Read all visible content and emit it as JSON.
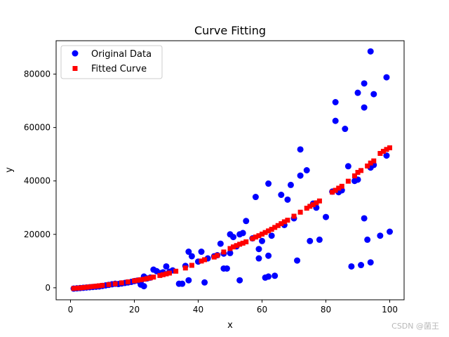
{
  "chart_data": {
    "type": "scatter",
    "title": "Curve Fitting",
    "xlabel": "x",
    "ylabel": "y",
    "xlim": [
      -4.5,
      104.5
    ],
    "ylim": [
      -4500,
      92500
    ],
    "xticks": [
      0,
      20,
      40,
      60,
      80,
      100
    ],
    "xtick_labels": [
      "0",
      "20",
      "40",
      "60",
      "80",
      "100"
    ],
    "yticks": [
      0,
      20000,
      40000,
      60000,
      80000
    ],
    "ytick_labels": [
      "0",
      "20000",
      "40000",
      "60000",
      "80000"
    ],
    "grid": false,
    "legend_position": "upper-left",
    "series": [
      {
        "name": "Original Data",
        "marker": "circle",
        "color": "#0000ff",
        "points": [
          [
            1,
            -300
          ],
          [
            2,
            -200
          ],
          [
            3,
            -100
          ],
          [
            4,
            0
          ],
          [
            5,
            100
          ],
          [
            6,
            200
          ],
          [
            7,
            300
          ],
          [
            8,
            400
          ],
          [
            9,
            500
          ],
          [
            10,
            700
          ],
          [
            11,
            900
          ],
          [
            12,
            1100
          ],
          [
            13,
            1300
          ],
          [
            14,
            1500
          ],
          [
            15,
            1400
          ],
          [
            16,
            1600
          ],
          [
            17,
            1800
          ],
          [
            18,
            2000
          ],
          [
            19,
            2200
          ],
          [
            20,
            2500
          ],
          [
            21,
            2700
          ],
          [
            22,
            1200
          ],
          [
            22,
            2300
          ],
          [
            23,
            4200
          ],
          [
            23,
            600
          ],
          [
            24,
            3500
          ],
          [
            25,
            3800
          ],
          [
            26,
            6800
          ],
          [
            27,
            6200
          ],
          [
            28,
            5500
          ],
          [
            29,
            5800
          ],
          [
            30,
            8000
          ],
          [
            31,
            6000
          ],
          [
            32,
            6500
          ],
          [
            34,
            1500
          ],
          [
            35,
            1500
          ],
          [
            36,
            8200
          ],
          [
            37,
            2800
          ],
          [
            37,
            13500
          ],
          [
            38,
            11800
          ],
          [
            40,
            9800
          ],
          [
            41,
            13500
          ],
          [
            42,
            2000
          ],
          [
            43,
            11000
          ],
          [
            45,
            11800
          ],
          [
            46,
            12200
          ],
          [
            47,
            16500
          ],
          [
            48,
            7200
          ],
          [
            48,
            12800
          ],
          [
            49,
            7200
          ],
          [
            50,
            20000
          ],
          [
            50,
            13000
          ],
          [
            51,
            19000
          ],
          [
            52,
            15500
          ],
          [
            53,
            2800
          ],
          [
            53,
            20000
          ],
          [
            54,
            20500
          ],
          [
            55,
            25000
          ],
          [
            57,
            18500
          ],
          [
            58,
            34000
          ],
          [
            59,
            11000
          ],
          [
            59,
            14500
          ],
          [
            60,
            17500
          ],
          [
            61,
            3800
          ],
          [
            62,
            4200
          ],
          [
            62,
            12000
          ],
          [
            62,
            39000
          ],
          [
            63,
            19500
          ],
          [
            64,
            4500
          ],
          [
            66,
            34800
          ],
          [
            67,
            23500
          ],
          [
            68,
            33000
          ],
          [
            69,
            38500
          ],
          [
            70,
            26000
          ],
          [
            71,
            10200
          ],
          [
            72,
            42000
          ],
          [
            72,
            51800
          ],
          [
            74,
            44000
          ],
          [
            75,
            17500
          ],
          [
            76,
            31500
          ],
          [
            77,
            30000
          ],
          [
            78,
            18000
          ],
          [
            80,
            26500
          ],
          [
            82,
            36000
          ],
          [
            83,
            62500
          ],
          [
            83,
            69500
          ],
          [
            84,
            35800
          ],
          [
            85,
            36500
          ],
          [
            86,
            59500
          ],
          [
            87,
            45500
          ],
          [
            88,
            8000
          ],
          [
            89,
            40000
          ],
          [
            90,
            40500
          ],
          [
            90,
            73000
          ],
          [
            91,
            8500
          ],
          [
            92,
            26000
          ],
          [
            92,
            67500
          ],
          [
            92,
            76500
          ],
          [
            93,
            18000
          ],
          [
            94,
            88500
          ],
          [
            94,
            9500
          ],
          [
            94,
            45000
          ],
          [
            95,
            46000
          ],
          [
            95,
            72500
          ],
          [
            97,
            19500
          ],
          [
            99,
            78800
          ],
          [
            99,
            49500
          ],
          [
            100,
            21000
          ]
        ]
      },
      {
        "name": "Fitted Curve",
        "marker": "square",
        "color": "#ff0000",
        "points": [
          [
            1,
            -250
          ],
          [
            2,
            -150
          ],
          [
            3,
            -50
          ],
          [
            4,
            80
          ],
          [
            5,
            200
          ],
          [
            6,
            330
          ],
          [
            7,
            480
          ],
          [
            8,
            600
          ],
          [
            9,
            750
          ],
          [
            10,
            900
          ],
          [
            12,
            1200
          ],
          [
            14,
            1500
          ],
          [
            16,
            1850
          ],
          [
            18,
            2200
          ],
          [
            20,
            2600
          ],
          [
            21,
            2800
          ],
          [
            22,
            3000
          ],
          [
            23,
            3200
          ],
          [
            24,
            3450
          ],
          [
            25,
            3700
          ],
          [
            26,
            4000
          ],
          [
            28,
            4600
          ],
          [
            29,
            4900
          ],
          [
            30,
            5200
          ],
          [
            31,
            5500
          ],
          [
            33,
            6200
          ],
          [
            36,
            7400
          ],
          [
            38,
            8400
          ],
          [
            41,
            10000
          ],
          [
            42,
            10500
          ],
          [
            45,
            11500
          ],
          [
            46,
            12100
          ],
          [
            48,
            13400
          ],
          [
            50,
            14700
          ],
          [
            51,
            15300
          ],
          [
            52,
            15800
          ],
          [
            53,
            16300
          ],
          [
            54,
            16700
          ],
          [
            55,
            17200
          ],
          [
            57,
            18400
          ],
          [
            58,
            19000
          ],
          [
            59,
            19500
          ],
          [
            60,
            20100
          ],
          [
            61,
            20700
          ],
          [
            62,
            21300
          ],
          [
            63,
            21900
          ],
          [
            64,
            22600
          ],
          [
            65,
            23300
          ],
          [
            66,
            24000
          ],
          [
            67,
            24700
          ],
          [
            68,
            25300
          ],
          [
            70,
            26800
          ],
          [
            72,
            28300
          ],
          [
            74,
            29800
          ],
          [
            75,
            30500
          ],
          [
            76,
            31100
          ],
          [
            77,
            31800
          ],
          [
            78,
            32500
          ],
          [
            82,
            35800
          ],
          [
            83,
            36500
          ],
          [
            84,
            37300
          ],
          [
            85,
            38000
          ],
          [
            87,
            39900
          ],
          [
            89,
            41900
          ],
          [
            90,
            43200
          ],
          [
            91,
            43900
          ],
          [
            93,
            45600
          ],
          [
            94,
            46700
          ],
          [
            95,
            47500
          ],
          [
            97,
            50300
          ],
          [
            98,
            51100
          ],
          [
            99,
            51800
          ],
          [
            100,
            52400
          ]
        ]
      }
    ]
  },
  "watermark": "CSDN @菌王"
}
